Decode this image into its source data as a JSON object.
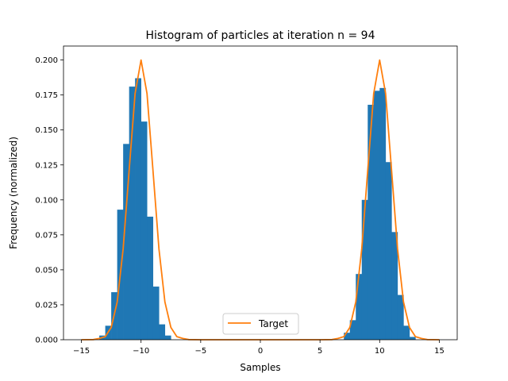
{
  "chart_data": {
    "type": "bar",
    "title": "Histogram of particles at iteration n = 94",
    "xlabel": "Samples",
    "ylabel": "Frequency (normalized)",
    "xlim": [
      -16.5,
      16.5
    ],
    "ylim": [
      0.0,
      0.21
    ],
    "xticks": [
      -15,
      -10,
      -5,
      0,
      5,
      10,
      15
    ],
    "xtick_labels": [
      "−15",
      "−10",
      "−5",
      "0",
      "5",
      "10",
      "15"
    ],
    "yticks": [
      0.0,
      0.025,
      0.05,
      0.075,
      0.1,
      0.125,
      0.15,
      0.175,
      0.2
    ],
    "ytick_labels": [
      "0.000",
      "0.025",
      "0.050",
      "0.075",
      "0.100",
      "0.125",
      "0.150",
      "0.175",
      "0.200"
    ],
    "grid": false,
    "legend": {
      "location": "lower center",
      "entries": [
        "Target"
      ]
    },
    "bar_color": "#1f77b4",
    "line_color": "#ff7f0e",
    "histogram": {
      "bin_width": 0.5,
      "bins": [
        {
          "x0": -13.5,
          "value": 0.003
        },
        {
          "x0": -13.0,
          "value": 0.01
        },
        {
          "x0": -12.5,
          "value": 0.034
        },
        {
          "x0": -12.0,
          "value": 0.093
        },
        {
          "x0": -11.5,
          "value": 0.14
        },
        {
          "x0": -11.0,
          "value": 0.181
        },
        {
          "x0": -10.5,
          "value": 0.187
        },
        {
          "x0": -10.0,
          "value": 0.156
        },
        {
          "x0": -9.5,
          "value": 0.088
        },
        {
          "x0": -9.0,
          "value": 0.038
        },
        {
          "x0": -8.5,
          "value": 0.011
        },
        {
          "x0": -8.0,
          "value": 0.003
        },
        {
          "x0": 7.0,
          "value": 0.005
        },
        {
          "x0": 7.5,
          "value": 0.014
        },
        {
          "x0": 8.0,
          "value": 0.047
        },
        {
          "x0": 8.5,
          "value": 0.1
        },
        {
          "x0": 9.0,
          "value": 0.168
        },
        {
          "x0": 9.5,
          "value": 0.178
        },
        {
          "x0": 10.0,
          "value": 0.18
        },
        {
          "x0": 10.5,
          "value": 0.127
        },
        {
          "x0": 11.0,
          "value": 0.077
        },
        {
          "x0": 11.5,
          "value": 0.032
        },
        {
          "x0": 12.0,
          "value": 0.01
        },
        {
          "x0": 12.5,
          "value": 0.002
        }
      ]
    },
    "series": [
      {
        "name": "Target",
        "type": "line",
        "x": [
          -15,
          -14,
          -13.5,
          -13,
          -12.5,
          -12,
          -11.5,
          -11,
          -10.5,
          -10,
          -9.5,
          -9,
          -8.5,
          -8,
          -7.5,
          -7,
          -6.5,
          -6,
          -5,
          0,
          5,
          6,
          6.5,
          7,
          7.5,
          8,
          8.5,
          9,
          9.5,
          10,
          10.5,
          11,
          11.5,
          12,
          12.5,
          13,
          13.5,
          14,
          15
        ],
        "y": [
          0.0,
          0.0001,
          0.0009,
          0.0022,
          0.0088,
          0.027,
          0.065,
          0.121,
          0.176,
          0.2,
          0.176,
          0.121,
          0.065,
          0.027,
          0.0088,
          0.0022,
          0.0009,
          0.0001,
          0.0,
          0.0,
          0.0,
          0.0001,
          0.0009,
          0.0022,
          0.0088,
          0.027,
          0.065,
          0.121,
          0.176,
          0.2,
          0.176,
          0.121,
          0.065,
          0.027,
          0.0088,
          0.0022,
          0.0009,
          0.0001,
          0.0
        ]
      }
    ]
  }
}
